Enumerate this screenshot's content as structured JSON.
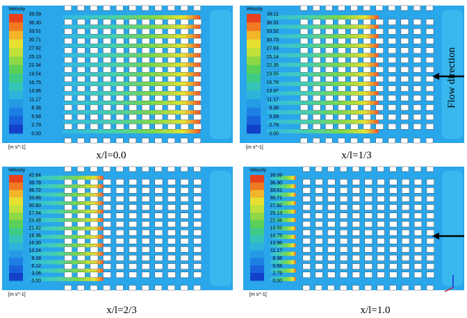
{
  "panels": [
    {
      "legend_title": "Velocity",
      "scale_labels": [
        "39.09",
        "36.30",
        "33.51",
        "30.71",
        "27.92",
        "25.13",
        "22.34",
        "19.54",
        "16.75",
        "13.96",
        "11.17",
        "8.38",
        "5.58",
        "2.79",
        "0.00"
      ],
      "unit": "[m s^-1]",
      "caption": "x/l=0.0"
    },
    {
      "legend_title": "Velocity",
      "scale_labels": [
        "39.11",
        "36.31",
        "33.52",
        "30.73",
        "27.93",
        "25.14",
        "22.35",
        "19.55",
        "16.76",
        "13.97",
        "11.17",
        "8.38",
        "5.59",
        "2.79",
        "0.00"
      ],
      "unit": "[m s^-1]",
      "caption": "x/l=1/3"
    },
    {
      "legend_title": "Velocity",
      "scale_labels": [
        "42.84",
        "39.78",
        "36.72",
        "33.66",
        "30.60",
        "27.54",
        "24.48",
        "21.42",
        "18.36",
        "15.30",
        "12.24",
        "9.18",
        "6.12",
        "3.06",
        "0.00"
      ],
      "unit": "[m s^-1]",
      "caption": "x/l=2/3"
    },
    {
      "legend_title": "Velocity",
      "scale_labels": [
        "39.09",
        "36.30",
        "33.51",
        "30.71",
        "27.92",
        "25.13",
        "22.34",
        "19.55",
        "16.75",
        "13.96",
        "11.17",
        "8.38",
        "5.58",
        "2.79",
        "0.00"
      ],
      "unit": "[m s^-1]",
      "caption": "x/l=1.0"
    }
  ],
  "flow_label": "Flow direction"
}
